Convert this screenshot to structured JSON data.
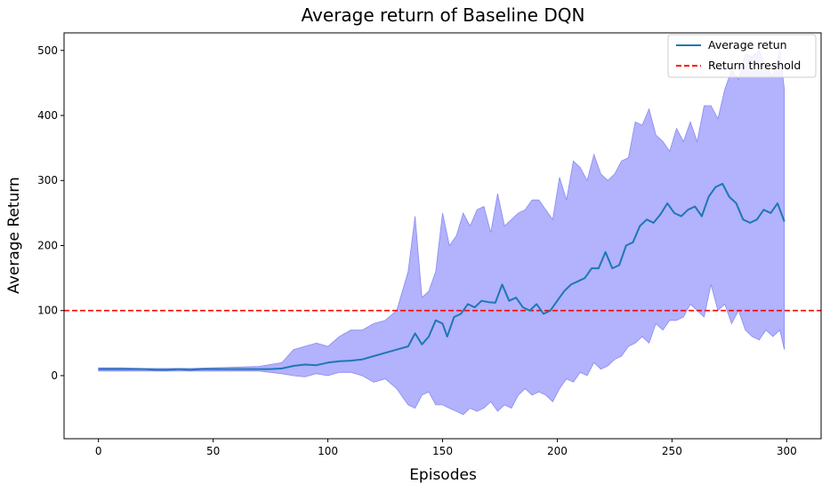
{
  "chart_data": {
    "type": "line",
    "title": "Average return of Baseline DQN",
    "xlabel": "Episodes",
    "ylabel": "Average Return",
    "xlim": [
      -15,
      315
    ],
    "ylim": [
      -97,
      527
    ],
    "xticks": [
      0,
      50,
      100,
      150,
      200,
      250,
      300
    ],
    "yticks": [
      0,
      100,
      200,
      300,
      400,
      500
    ],
    "grid": false,
    "legend_position": "top-right",
    "colors": {
      "mean_line": "#1f77b4",
      "band_fill": "#aeaefd",
      "band_edge": "#8a8af0",
      "threshold": "#ff0000"
    },
    "series": [
      {
        "name": "Average retun",
        "style": "solid",
        "points": [
          [
            0,
            10
          ],
          [
            5,
            10
          ],
          [
            10,
            10
          ],
          [
            15,
            10
          ],
          [
            20,
            10
          ],
          [
            25,
            9
          ],
          [
            30,
            9
          ],
          [
            35,
            10
          ],
          [
            40,
            9
          ],
          [
            45,
            10
          ],
          [
            50,
            10
          ],
          [
            55,
            10
          ],
          [
            60,
            10
          ],
          [
            65,
            10
          ],
          [
            70,
            10
          ],
          [
            75,
            10
          ],
          [
            80,
            11
          ],
          [
            85,
            15
          ],
          [
            90,
            17
          ],
          [
            95,
            16
          ],
          [
            100,
            20
          ],
          [
            105,
            22
          ],
          [
            110,
            23
          ],
          [
            115,
            25
          ],
          [
            120,
            30
          ],
          [
            125,
            35
          ],
          [
            130,
            40
          ],
          [
            135,
            45
          ],
          [
            138,
            65
          ],
          [
            141,
            48
          ],
          [
            144,
            60
          ],
          [
            147,
            85
          ],
          [
            150,
            80
          ],
          [
            152,
            60
          ],
          [
            155,
            90
          ],
          [
            158,
            95
          ],
          [
            161,
            110
          ],
          [
            164,
            105
          ],
          [
            167,
            115
          ],
          [
            170,
            113
          ],
          [
            173,
            112
          ],
          [
            176,
            140
          ],
          [
            179,
            115
          ],
          [
            182,
            120
          ],
          [
            185,
            105
          ],
          [
            188,
            100
          ],
          [
            191,
            110
          ],
          [
            194,
            95
          ],
          [
            197,
            100
          ],
          [
            200,
            115
          ],
          [
            203,
            130
          ],
          [
            206,
            140
          ],
          [
            209,
            145
          ],
          [
            212,
            150
          ],
          [
            215,
            165
          ],
          [
            218,
            165
          ],
          [
            221,
            190
          ],
          [
            224,
            165
          ],
          [
            227,
            170
          ],
          [
            230,
            200
          ],
          [
            233,
            205
          ],
          [
            236,
            230
          ],
          [
            239,
            240
          ],
          [
            242,
            235
          ],
          [
            245,
            248
          ],
          [
            248,
            265
          ],
          [
            251,
            250
          ],
          [
            254,
            245
          ],
          [
            257,
            255
          ],
          [
            260,
            260
          ],
          [
            263,
            245
          ],
          [
            266,
            275
          ],
          [
            269,
            290
          ],
          [
            272,
            295
          ],
          [
            275,
            275
          ],
          [
            278,
            265
          ],
          [
            281,
            240
          ],
          [
            284,
            235
          ],
          [
            287,
            240
          ],
          [
            290,
            255
          ],
          [
            293,
            250
          ],
          [
            296,
            265
          ],
          [
            299,
            237
          ]
        ]
      },
      {
        "name": "Return threshold",
        "style": "dashed",
        "y": 100
      }
    ],
    "band": {
      "x": [
        0,
        10,
        20,
        30,
        40,
        50,
        60,
        70,
        80,
        85,
        90,
        95,
        100,
        105,
        110,
        115,
        120,
        125,
        130,
        135,
        138,
        141,
        144,
        147,
        150,
        153,
        156,
        159,
        162,
        165,
        168,
        171,
        174,
        177,
        180,
        183,
        186,
        189,
        192,
        195,
        198,
        201,
        204,
        207,
        210,
        213,
        216,
        219,
        222,
        225,
        228,
        231,
        234,
        237,
        240,
        243,
        246,
        249,
        252,
        255,
        258,
        261,
        264,
        267,
        270,
        273,
        276,
        279,
        282,
        285,
        288,
        291,
        294,
        297,
        299
      ],
      "upper": [
        12,
        12,
        11,
        11,
        11,
        12,
        13,
        14,
        20,
        40,
        45,
        50,
        45,
        60,
        70,
        70,
        80,
        85,
        100,
        160,
        245,
        120,
        130,
        160,
        250,
        200,
        215,
        250,
        230,
        255,
        260,
        220,
        280,
        230,
        240,
        250,
        255,
        270,
        270,
        255,
        240,
        305,
        270,
        330,
        320,
        300,
        340,
        310,
        300,
        310,
        330,
        335,
        390,
        385,
        410,
        370,
        360,
        345,
        380,
        360,
        390,
        360,
        415,
        415,
        395,
        440,
        470,
        455,
        495,
        490,
        500,
        475,
        460,
        500,
        440
      ],
      "lower": [
        7,
        7,
        7,
        7,
        7,
        7,
        7,
        7,
        3,
        0,
        -2,
        3,
        0,
        5,
        5,
        0,
        -10,
        -5,
        -20,
        -45,
        -50,
        -30,
        -25,
        -45,
        -45,
        -50,
        -55,
        -60,
        -50,
        -55,
        -50,
        -40,
        -55,
        -45,
        -50,
        -30,
        -20,
        -30,
        -25,
        -30,
        -40,
        -20,
        -5,
        -10,
        5,
        0,
        20,
        10,
        15,
        25,
        30,
        45,
        50,
        60,
        50,
        80,
        70,
        85,
        85,
        90,
        110,
        100,
        90,
        140,
        100,
        110,
        80,
        100,
        70,
        60,
        55,
        70,
        60,
        70,
        40
      ]
    }
  }
}
